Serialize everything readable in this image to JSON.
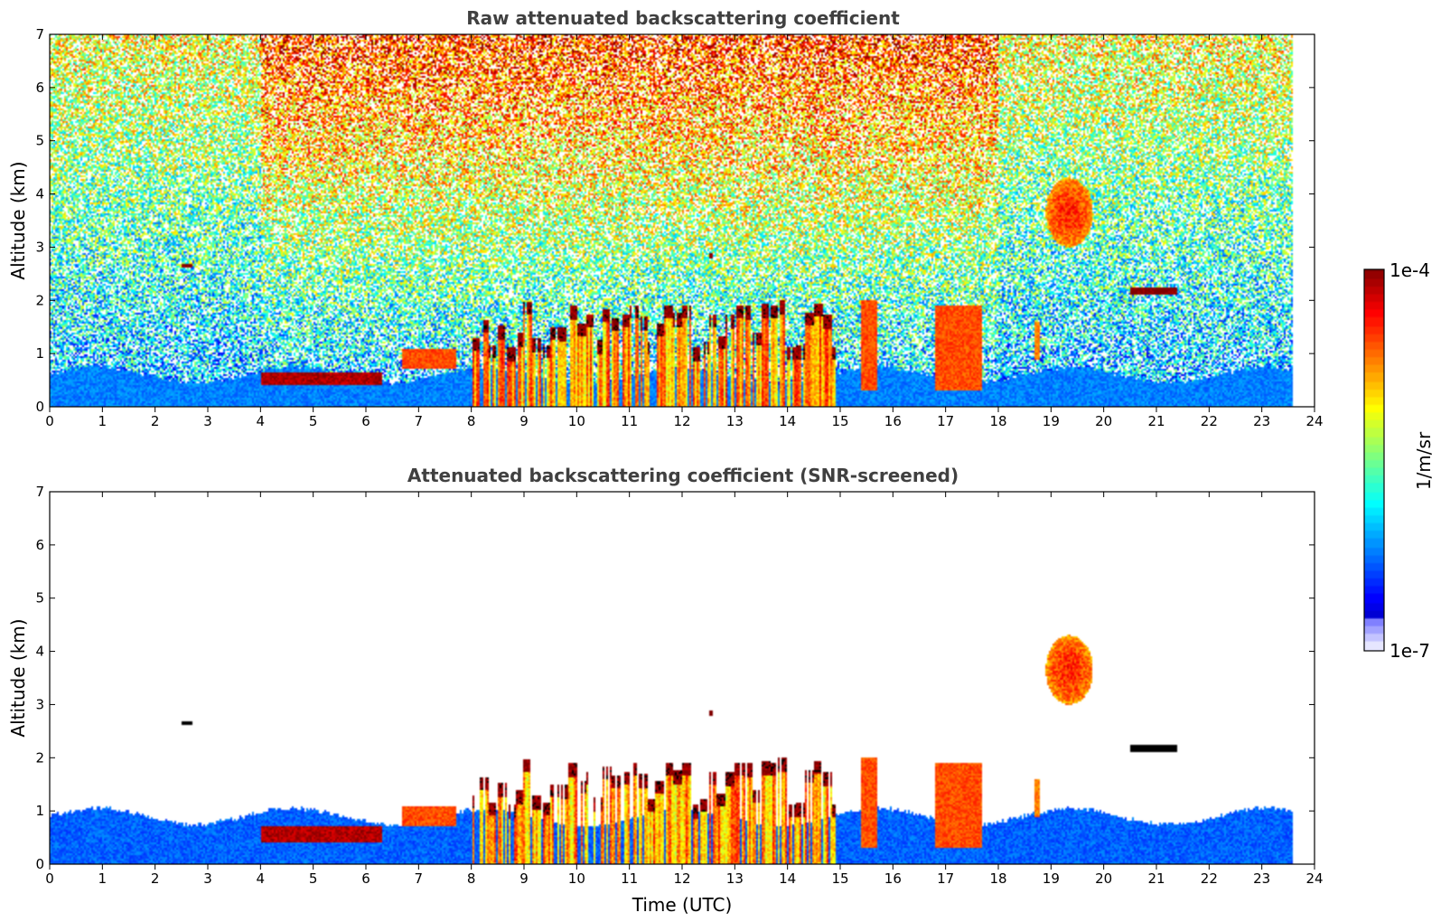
{
  "chart_data": [
    {
      "type": "heatmap",
      "title": "Raw attenuated backscattering coefficient",
      "xlabel": "",
      "ylabel": "Altitude (km)",
      "xlim": [
        0,
        24
      ],
      "ylim": [
        0,
        7
      ],
      "xticks": [
        0,
        1,
        2,
        3,
        4,
        5,
        6,
        7,
        8,
        9,
        10,
        11,
        12,
        13,
        14,
        15,
        16,
        17,
        18,
        19,
        20,
        21,
        22,
        23,
        24
      ],
      "yticks": [
        0,
        1,
        2,
        3,
        4,
        5,
        6,
        7
      ],
      "data_end_hour": 23.6,
      "noise": "dense",
      "features": [
        {
          "kind": "boundary-layer",
          "x": [
            0,
            23.6
          ],
          "top_km": 0.6,
          "level": 0.25
        },
        {
          "kind": "aerosol-layer",
          "x": [
            4.0,
            6.3
          ],
          "y": [
            0.4,
            0.65
          ],
          "level": 0.95
        },
        {
          "kind": "aerosol-layer",
          "x": [
            6.7,
            7.7
          ],
          "y": [
            0.7,
            1.1
          ],
          "level": 0.8
        },
        {
          "kind": "convective-clouds",
          "x": [
            8.0,
            14.9
          ],
          "top_km": 2.0,
          "level": 0.85
        },
        {
          "kind": "cloud-column",
          "x": [
            15.4,
            15.7
          ],
          "y": [
            0.3,
            2.0
          ],
          "level": 0.8
        },
        {
          "kind": "cloud-column",
          "x": [
            16.8,
            17.7
          ],
          "y": [
            0.3,
            1.9
          ],
          "level": 0.8
        },
        {
          "kind": "cloud-column",
          "x": [
            18.7,
            18.8
          ],
          "y": [
            0.9,
            1.6
          ],
          "level": 0.75
        },
        {
          "kind": "elevated-cloud",
          "x": [
            18.9,
            19.8
          ],
          "y": [
            3.0,
            4.3
          ],
          "level": 0.72
        },
        {
          "kind": "thin-cloud",
          "x": [
            20.5,
            21.4
          ],
          "y": [
            2.1,
            2.25
          ],
          "level": 1.0
        },
        {
          "kind": "speck",
          "x": [
            2.5,
            2.7
          ],
          "y": [
            2.6,
            2.7
          ],
          "level": 1.0
        },
        {
          "kind": "speck",
          "x": [
            12.5,
            12.6
          ],
          "y": [
            2.8,
            2.9
          ],
          "level": 1.0
        }
      ]
    },
    {
      "type": "heatmap",
      "title": "Attenuated backscattering coefficient (SNR-screened)",
      "xlabel": "Time (UTC)",
      "ylabel": "Altitude (km)",
      "xlim": [
        0,
        24
      ],
      "ylim": [
        0,
        7
      ],
      "xticks": [
        0,
        1,
        2,
        3,
        4,
        5,
        6,
        7,
        8,
        9,
        10,
        11,
        12,
        13,
        14,
        15,
        16,
        17,
        18,
        19,
        20,
        21,
        22,
        23,
        24
      ],
      "yticks": [
        0,
        1,
        2,
        3,
        4,
        5,
        6,
        7
      ],
      "data_end_hour": 23.6,
      "noise": "none",
      "features": [
        {
          "kind": "boundary-layer",
          "x": [
            0,
            23.6
          ],
          "top_km": 0.9,
          "level": 0.22
        },
        {
          "kind": "aerosol-layer",
          "x": [
            4.0,
            6.3
          ],
          "y": [
            0.4,
            0.7
          ],
          "level": 0.95
        },
        {
          "kind": "aerosol-layer",
          "x": [
            6.7,
            7.7
          ],
          "y": [
            0.7,
            1.1
          ],
          "level": 0.8
        },
        {
          "kind": "convective-clouds",
          "x": [
            8.0,
            14.9
          ],
          "top_km": 2.0,
          "level": 0.85
        },
        {
          "kind": "cloud-column",
          "x": [
            15.4,
            15.7
          ],
          "y": [
            0.3,
            2.0
          ],
          "level": 0.8
        },
        {
          "kind": "cloud-column",
          "x": [
            16.8,
            17.7
          ],
          "y": [
            0.3,
            1.9
          ],
          "level": 0.8
        },
        {
          "kind": "cloud-column",
          "x": [
            18.7,
            18.8
          ],
          "y": [
            0.9,
            1.6
          ],
          "level": 0.75
        },
        {
          "kind": "elevated-cloud",
          "x": [
            18.9,
            19.8
          ],
          "y": [
            3.0,
            4.3
          ],
          "level": 0.72
        },
        {
          "kind": "thin-cloud",
          "x": [
            20.5,
            21.4
          ],
          "y": [
            2.1,
            2.25
          ],
          "level": 1.2
        },
        {
          "kind": "speck",
          "x": [
            2.5,
            2.7
          ],
          "y": [
            2.6,
            2.7
          ],
          "level": 1.2
        },
        {
          "kind": "speck",
          "x": [
            12.5,
            12.6
          ],
          "y": [
            2.8,
            2.9
          ],
          "level": 1.0
        }
      ]
    }
  ],
  "colorbar": {
    "label": "1/m/sr",
    "max_label": "1e-4",
    "min_label": "1e-7",
    "scale": "log",
    "range": [
      1e-07,
      0.0001
    ],
    "colormap": "jet",
    "over_color": "#000000",
    "no_data_color": "#ffffff"
  }
}
